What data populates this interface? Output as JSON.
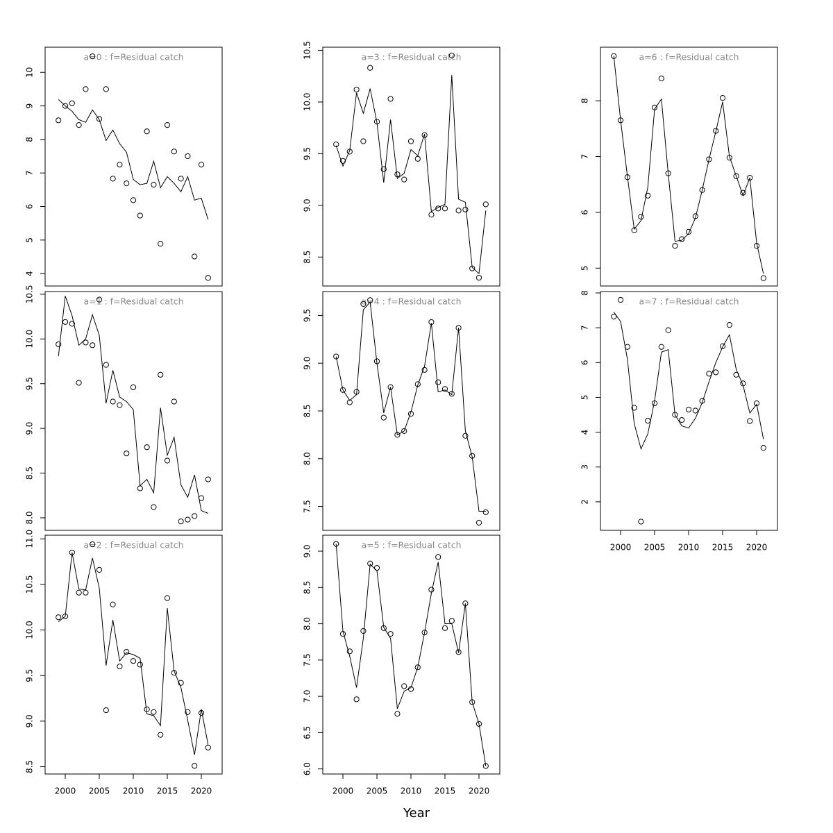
{
  "axis_title": "Year",
  "chart_data": [
    {
      "type": "line",
      "title": "a=0  :  f=Residual catch",
      "x": [
        1999,
        2000,
        2001,
        2002,
        2003,
        2004,
        2005,
        2006,
        2007,
        2008,
        2009,
        2010,
        2011,
        2012,
        2013,
        2014,
        2015,
        2016,
        2017,
        2018,
        2019,
        2020,
        2021
      ],
      "xlim": [
        1997.04,
        2023.06
      ],
      "ylim": [
        3.63,
        10.75
      ],
      "yticks": [
        4,
        5,
        6,
        7,
        8,
        9,
        10
      ],
      "series": [
        {
          "kind": "points",
          "color": "#000000",
          "values": [
            8.57,
            9.0,
            9.08,
            8.43,
            9.5,
            10.48,
            8.61,
            9.5,
            6.83,
            7.25,
            6.69,
            6.19,
            5.73,
            8.24,
            6.65,
            4.89,
            8.43,
            7.64,
            6.83,
            7.5,
            4.51,
            7.25,
            3.87
          ]
        },
        {
          "kind": "line",
          "color": "#000000",
          "values": [
            9.19,
            9.0,
            8.84,
            8.59,
            8.51,
            8.88,
            8.59,
            7.97,
            8.28,
            7.87,
            7.62,
            6.81,
            6.65,
            6.69,
            7.35,
            6.56,
            6.89,
            6.69,
            6.44,
            6.89,
            6.19,
            6.25,
            5.61
          ]
        }
      ]
    },
    {
      "type": "line",
      "title": "a=1  :  f=Residual catch",
      "x": [
        1999,
        2000,
        2001,
        2002,
        2003,
        2004,
        2005,
        2006,
        2007,
        2008,
        2009,
        2010,
        2011,
        2012,
        2013,
        2014,
        2015,
        2016,
        2017,
        2018,
        2019,
        2020,
        2021
      ],
      "xlim": [
        1997.04,
        2023.06
      ],
      "ylim": [
        7.86,
        10.53
      ],
      "yticks": [
        {
          "value": 8,
          "label": "8.0"
        },
        8.5,
        {
          "value": 9,
          "label": "9.0"
        },
        9.5,
        {
          "value": 10,
          "label": "10.0"
        },
        10.5
      ],
      "series": [
        {
          "kind": "points",
          "color": "#000000",
          "values": [
            9.94,
            10.19,
            10.17,
            9.51,
            9.96,
            9.93,
            10.44,
            9.71,
            9.3,
            9.26,
            8.72,
            9.46,
            8.33,
            8.79,
            8.12,
            9.6,
            8.64,
            9.3,
            7.96,
            7.98,
            8.02,
            8.22,
            8.43
          ]
        },
        {
          "kind": "line",
          "color": "#000000",
          "values": [
            9.81,
            10.48,
            10.26,
            9.93,
            10.0,
            10.27,
            10.04,
            9.28,
            9.65,
            9.35,
            9.3,
            9.21,
            8.36,
            8.43,
            8.28,
            9.23,
            8.7,
            8.9,
            8.37,
            8.23,
            8.48,
            8.08,
            8.05
          ]
        }
      ]
    },
    {
      "type": "line",
      "title": "a=2  :  f=Residual catch",
      "x": [
        1999,
        2000,
        2001,
        2002,
        2003,
        2004,
        2005,
        2006,
        2007,
        2008,
        2009,
        2010,
        2011,
        2012,
        2013,
        2014,
        2015,
        2016,
        2017,
        2018,
        2019,
        2020,
        2021
      ],
      "xlim": [
        1997.04,
        2023.06
      ],
      "xticks": [
        2000,
        2005,
        2010,
        2015,
        2020
      ],
      "ylim": [
        8.42,
        11.04
      ],
      "yticks": [
        8.5,
        {
          "value": 9,
          "label": "9.0"
        },
        9.5,
        {
          "value": 10,
          "label": "10.0"
        },
        10.5,
        {
          "value": 11,
          "label": "11.0"
        }
      ],
      "series": [
        {
          "kind": "points",
          "color": "#000000",
          "values": [
            10.14,
            10.15,
            10.85,
            10.41,
            10.41,
            10.94,
            10.66,
            9.12,
            10.28,
            9.6,
            9.76,
            9.66,
            9.62,
            9.13,
            9.1,
            8.85,
            10.35,
            9.53,
            9.42,
            9.1,
            8.51,
            9.09,
            8.71
          ]
        },
        {
          "kind": "line",
          "color": "#000000",
          "values": [
            10.09,
            10.15,
            10.85,
            10.45,
            10.44,
            10.79,
            10.46,
            9.61,
            10.11,
            9.66,
            9.75,
            9.73,
            9.69,
            9.08,
            9.06,
            8.95,
            10.24,
            9.55,
            9.37,
            9.01,
            8.63,
            9.13,
            8.74
          ]
        }
      ]
    },
    {
      "type": "line",
      "title": "a=3  :  f=Residual catch",
      "x": [
        1999,
        2000,
        2001,
        2002,
        2003,
        2004,
        2005,
        2006,
        2007,
        2008,
        2009,
        2010,
        2011,
        2012,
        2013,
        2014,
        2015,
        2016,
        2017,
        2018,
        2019,
        2020,
        2021
      ],
      "xlim": [
        1997.04,
        2023.06
      ],
      "ylim": [
        8.22,
        10.53
      ],
      "yticks": [
        8.5,
        {
          "value": 9,
          "label": "9.0"
        },
        9.5,
        {
          "value": 10,
          "label": "10.0"
        },
        10.5
      ],
      "series": [
        {
          "kind": "points",
          "color": "#000000",
          "values": [
            9.59,
            9.43,
            9.52,
            10.12,
            9.62,
            10.33,
            9.81,
            9.35,
            10.03,
            9.3,
            9.25,
            9.62,
            9.45,
            9.68,
            8.91,
            8.97,
            8.97,
            10.45,
            8.95,
            8.96,
            8.39,
            8.3,
            9.01
          ]
        },
        {
          "kind": "line",
          "color": "#000000",
          "values": [
            9.58,
            9.38,
            9.53,
            10.09,
            9.89,
            10.13,
            9.8,
            9.22,
            9.83,
            9.26,
            9.31,
            9.54,
            9.48,
            9.69,
            8.94,
            8.98,
            9.01,
            10.26,
            9.06,
            9.03,
            8.4,
            8.34,
            8.95
          ]
        }
      ]
    },
    {
      "type": "line",
      "title": "a=4  :  f=Residual catch",
      "x": [
        1999,
        2000,
        2001,
        2002,
        2003,
        2004,
        2005,
        2006,
        2007,
        2008,
        2009,
        2010,
        2011,
        2012,
        2013,
        2014,
        2015,
        2016,
        2017,
        2018,
        2019,
        2020,
        2021
      ],
      "xlim": [
        1997.04,
        2023.06
      ],
      "ylim": [
        7.25,
        9.75
      ],
      "yticks": [
        7.5,
        {
          "value": 8,
          "label": "8.0"
        },
        8.5,
        {
          "value": 9,
          "label": "9.0"
        },
        9.5
      ],
      "series": [
        {
          "kind": "points",
          "color": "#000000",
          "values": [
            9.07,
            8.72,
            8.59,
            8.7,
            9.62,
            9.66,
            9.02,
            8.43,
            8.75,
            8.25,
            8.29,
            8.47,
            8.78,
            8.93,
            9.43,
            8.8,
            8.73,
            8.68,
            9.37,
            8.24,
            8.03,
            7.33,
            7.44
          ]
        },
        {
          "kind": "line",
          "color": "#000000",
          "values": [
            9.07,
            8.72,
            8.61,
            8.67,
            9.56,
            9.64,
            9.0,
            8.48,
            8.75,
            8.25,
            8.29,
            8.49,
            8.77,
            8.97,
            9.42,
            8.7,
            8.72,
            8.67,
            9.37,
            8.29,
            8.02,
            7.45,
            7.45
          ]
        }
      ]
    },
    {
      "type": "line",
      "title": "a=5  :  f=Residual catch",
      "x": [
        1999,
        2000,
        2001,
        2002,
        2003,
        2004,
        2005,
        2006,
        2007,
        2008,
        2009,
        2010,
        2011,
        2012,
        2013,
        2014,
        2015,
        2016,
        2017,
        2018,
        2019,
        2020,
        2021
      ],
      "xlim": [
        1997.04,
        2023.06
      ],
      "xticks": [
        2000,
        2005,
        2010,
        2015,
        2020
      ],
      "ylim": [
        5.93,
        9.22
      ],
      "yticks": [
        {
          "value": 6,
          "label": "6.0"
        },
        6.5,
        {
          "value": 7,
          "label": "7.0"
        },
        7.5,
        {
          "value": 8,
          "label": "8.0"
        },
        8.5,
        {
          "value": 9,
          "label": "9.0"
        }
      ],
      "series": [
        {
          "kind": "points",
          "color": "#000000",
          "values": [
            9.1,
            7.86,
            7.62,
            6.96,
            7.9,
            8.83,
            8.77,
            7.94,
            7.86,
            6.76,
            7.14,
            7.1,
            7.4,
            7.88,
            8.47,
            8.92,
            7.94,
            8.04,
            7.61,
            8.28,
            6.92,
            6.62,
            6.04
          ]
        },
        {
          "kind": "line",
          "color": "#000000",
          "values": [
            9.1,
            7.9,
            7.55,
            7.12,
            7.8,
            8.82,
            8.73,
            7.95,
            7.8,
            6.83,
            7.07,
            7.12,
            7.4,
            7.88,
            8.42,
            8.85,
            8.0,
            8.0,
            7.6,
            8.28,
            6.92,
            6.62,
            6.04
          ]
        }
      ]
    },
    {
      "type": "line",
      "title": "a=6  :  f=Residual catch",
      "x": [
        1999,
        2000,
        2001,
        2002,
        2003,
        2004,
        2005,
        2006,
        2007,
        2008,
        2009,
        2010,
        2011,
        2012,
        2013,
        2014,
        2015,
        2016,
        2017,
        2018,
        2019,
        2020,
        2021
      ],
      "xlim": [
        1997.04,
        2023.06
      ],
      "ylim": [
        4.68,
        8.96
      ],
      "yticks": [
        5,
        6,
        7,
        8
      ],
      "series": [
        {
          "kind": "points",
          "color": "#000000",
          "values": [
            8.8,
            7.65,
            6.63,
            5.68,
            5.92,
            6.3,
            7.88,
            8.4,
            6.7,
            5.4,
            5.52,
            5.65,
            5.93,
            6.4,
            6.95,
            7.46,
            8.05,
            6.98,
            6.65,
            6.35,
            6.62,
            5.4,
            4.82
          ]
        },
        {
          "kind": "line",
          "color": "#000000",
          "values": [
            8.8,
            7.65,
            6.65,
            5.7,
            5.85,
            6.45,
            7.85,
            8.03,
            6.7,
            5.48,
            5.5,
            5.62,
            5.9,
            6.4,
            6.95,
            7.45,
            7.98,
            7.0,
            6.65,
            6.3,
            6.62,
            5.45,
            4.9
          ]
        }
      ]
    },
    {
      "type": "line",
      "title": "a=7  :  f=Residual catch",
      "x": [
        1999,
        2000,
        2001,
        2002,
        2003,
        2004,
        2005,
        2006,
        2007,
        2008,
        2009,
        2010,
        2011,
        2012,
        2013,
        2014,
        2015,
        2016,
        2017,
        2018,
        2019,
        2020,
        2021
      ],
      "xlim": [
        1997.04,
        2023.06
      ],
      "xticks": [
        2000,
        2005,
        2010,
        2015,
        2020
      ],
      "ylim": [
        1.18,
        8.04
      ],
      "yticks": [
        2,
        3,
        4,
        5,
        6,
        7,
        8
      ],
      "series": [
        {
          "kind": "points",
          "color": "#000000",
          "values": [
            7.32,
            7.8,
            6.45,
            4.7,
            1.43,
            4.33,
            4.83,
            6.45,
            6.93,
            4.5,
            4.35,
            4.65,
            4.62,
            4.9,
            5.68,
            5.72,
            6.47,
            7.08,
            5.65,
            5.4,
            4.32,
            4.83,
            3.55
          ]
        },
        {
          "kind": "line",
          "color": "#000000",
          "values": [
            7.45,
            7.18,
            6.1,
            4.25,
            3.52,
            3.95,
            4.9,
            6.3,
            6.37,
            4.5,
            4.18,
            4.12,
            4.4,
            4.85,
            5.45,
            6.0,
            6.45,
            6.8,
            5.8,
            5.35,
            4.55,
            4.8,
            3.8
          ]
        }
      ]
    }
  ]
}
